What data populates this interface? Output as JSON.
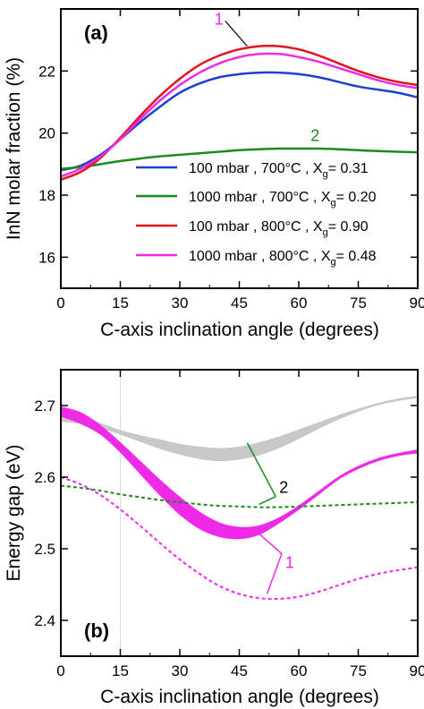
{
  "chart_data": [
    {
      "type": "line",
      "panel_label": "(a)",
      "xlabel": "C-axis inclination angle (degrees)",
      "ylabel": "InN molar fraction (%)",
      "xlim": [
        0,
        90
      ],
      "ylim": [
        15,
        24
      ],
      "xticks": [
        0,
        15,
        30,
        45,
        60,
        75,
        90
      ],
      "yticks": [
        16,
        18,
        20,
        22
      ],
      "x": [
        0,
        5,
        10,
        15,
        20,
        25,
        30,
        35,
        40,
        45,
        50,
        55,
        60,
        65,
        70,
        75,
        80,
        85,
        90
      ],
      "series": [
        {
          "name_parts": {
            "pressure": "100 mbar",
            "temp": ", 700°C ,",
            "xg": "0.31"
          },
          "color": "#1f3fd1",
          "values": [
            18.8,
            18.95,
            19.3,
            19.8,
            20.35,
            20.85,
            21.3,
            21.6,
            21.8,
            21.9,
            21.95,
            21.95,
            21.9,
            21.8,
            21.65,
            21.5,
            21.4,
            21.3,
            21.15
          ]
        },
        {
          "name_parts": {
            "pressure": "1000 mbar",
            "temp": ", 700°C ,",
            "xg": "0.20"
          },
          "color": "#1d8a1d",
          "values": [
            18.85,
            18.9,
            19.0,
            19.1,
            19.18,
            19.25,
            19.3,
            19.35,
            19.4,
            19.45,
            19.48,
            19.5,
            19.5,
            19.5,
            19.48,
            19.45,
            19.42,
            19.4,
            19.38
          ]
        },
        {
          "name_parts": {
            "pressure": "100 mbar",
            "temp": ", 800°C ,",
            "xg": "0.90"
          },
          "color": "#e0141e",
          "values": [
            18.5,
            18.75,
            19.2,
            19.85,
            20.55,
            21.2,
            21.75,
            22.2,
            22.5,
            22.7,
            22.8,
            22.8,
            22.7,
            22.5,
            22.25,
            22.0,
            21.8,
            21.65,
            21.55
          ]
        },
        {
          "name_parts": {
            "pressure": "1000 mbar",
            "temp": ", 800°C ,",
            "xg": "0.48"
          },
          "color": "#ee2ae8",
          "values": [
            18.6,
            18.85,
            19.25,
            19.8,
            20.45,
            21.05,
            21.55,
            21.95,
            22.25,
            22.45,
            22.55,
            22.55,
            22.45,
            22.3,
            22.1,
            21.9,
            21.7,
            21.55,
            21.45
          ]
        }
      ],
      "annotations": [
        {
          "text": "1",
          "x": 41,
          "y": 23.5
        },
        {
          "text": "2",
          "x": 63,
          "y": 19.75
        }
      ]
    },
    {
      "type": "line",
      "panel_label": "(b)",
      "xlabel": "C-axis inclination angle (degrees)",
      "ylabel": "Energy gap (eV)",
      "xlim": [
        0,
        90
      ],
      "ylim": [
        2.35,
        2.75
      ],
      "xticks": [
        0,
        15,
        30,
        45,
        60,
        75,
        90
      ],
      "yticks": [
        2.4,
        2.5,
        2.6,
        2.7
      ],
      "x": [
        0,
        5,
        10,
        15,
        20,
        25,
        30,
        35,
        40,
        45,
        50,
        55,
        60,
        65,
        70,
        75,
        80,
        85,
        90
      ],
      "series": [
        {
          "color": "#c8c8c8",
          "style": "band",
          "upper": [
            2.69,
            2.685,
            2.675,
            2.665,
            2.658,
            2.652,
            2.646,
            2.642,
            2.64,
            2.642,
            2.648,
            2.656,
            2.666,
            2.676,
            2.686,
            2.695,
            2.703,
            2.709,
            2.713
          ],
          "lower": [
            2.678,
            2.675,
            2.669,
            2.66,
            2.65,
            2.64,
            2.632,
            2.626,
            2.623,
            2.625,
            2.631,
            2.641,
            2.654,
            2.668,
            2.681,
            2.692,
            2.701,
            2.707,
            2.711
          ]
        },
        {
          "color": "#ee2ae8",
          "style": "band",
          "upper": [
            2.698,
            2.69,
            2.672,
            2.648,
            2.622,
            2.596,
            2.572,
            2.551,
            2.536,
            2.53,
            2.532,
            2.543,
            2.56,
            2.58,
            2.6,
            2.615,
            2.626,
            2.633,
            2.638
          ],
          "lower": [
            2.685,
            2.675,
            2.66,
            2.635,
            2.605,
            2.575,
            2.548,
            2.528,
            2.517,
            2.514,
            2.52,
            2.536,
            2.555,
            2.576,
            2.597,
            2.612,
            2.623,
            2.63,
            2.634
          ]
        },
        {
          "color": "#1d8a1d",
          "style": "dashed",
          "values": [
            2.588,
            2.585,
            2.581,
            2.576,
            2.572,
            2.568,
            2.565,
            2.562,
            2.56,
            2.559,
            2.558,
            2.558,
            2.559,
            2.56,
            2.561,
            2.562,
            2.563,
            2.564,
            2.565
          ]
        },
        {
          "color": "#ee2ae8",
          "style": "dashed",
          "values": [
            2.6,
            2.59,
            2.575,
            2.555,
            2.532,
            2.508,
            2.485,
            2.465,
            2.448,
            2.437,
            2.431,
            2.43,
            2.433,
            2.44,
            2.449,
            2.458,
            2.465,
            2.47,
            2.474
          ]
        }
      ],
      "annotations": [
        {
          "text": "2",
          "x": 56,
          "y": 2.578,
          "leaders": [
            [
              50,
              2.562
            ],
            [
              47,
              2.648
            ]
          ]
        },
        {
          "text": "1",
          "x": 57.5,
          "y": 2.473,
          "leaders": [
            [
              52,
              2.437
            ],
            [
              50,
              2.521
            ]
          ]
        }
      ]
    }
  ]
}
